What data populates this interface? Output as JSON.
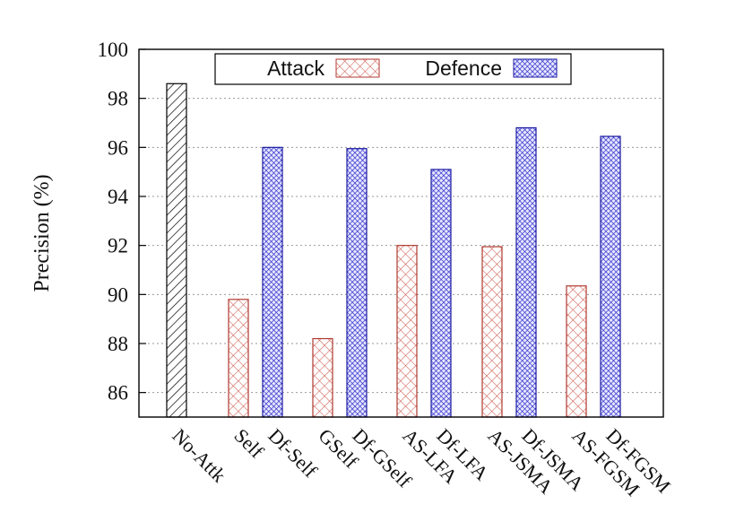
{
  "chart_data": {
    "type": "bar",
    "title": "",
    "xlabel": "",
    "ylabel": "Precision (%)",
    "ylim": [
      85,
      100
    ],
    "yticks": [
      86,
      88,
      90,
      92,
      94,
      96,
      98,
      100
    ],
    "grid": true,
    "legend_position": "top",
    "legend": [
      {
        "name": "Attack",
        "color": "#cc5a4e",
        "pattern": "crosshatch"
      },
      {
        "name": "Defence",
        "color": "#2323c8",
        "pattern": "dense-crosshatch"
      }
    ],
    "baseline": {
      "name": "No-Attk",
      "value": 98.6,
      "color": "#000000",
      "pattern": "diagonal"
    },
    "bars": [
      {
        "label": "No-Attk",
        "value": 98.6,
        "kind": "baseline"
      },
      {
        "label": "Self",
        "value": 89.8,
        "kind": "attack"
      },
      {
        "label": "Df-Self",
        "value": 96.0,
        "kind": "defence"
      },
      {
        "label": "GSelf",
        "value": 88.2,
        "kind": "attack"
      },
      {
        "label": "Df-GSelf",
        "value": 95.95,
        "kind": "defence"
      },
      {
        "label": "AS-LFA",
        "value": 92.0,
        "kind": "attack"
      },
      {
        "label": "Df-LFA",
        "value": 95.1,
        "kind": "defence"
      },
      {
        "label": "AS-JSMA",
        "value": 91.95,
        "kind": "attack"
      },
      {
        "label": "Df-JSMA",
        "value": 96.8,
        "kind": "defence"
      },
      {
        "label": "AS-FGSM",
        "value": 90.35,
        "kind": "attack"
      },
      {
        "label": "Df-FGSM",
        "value": 96.45,
        "kind": "defence"
      }
    ]
  }
}
